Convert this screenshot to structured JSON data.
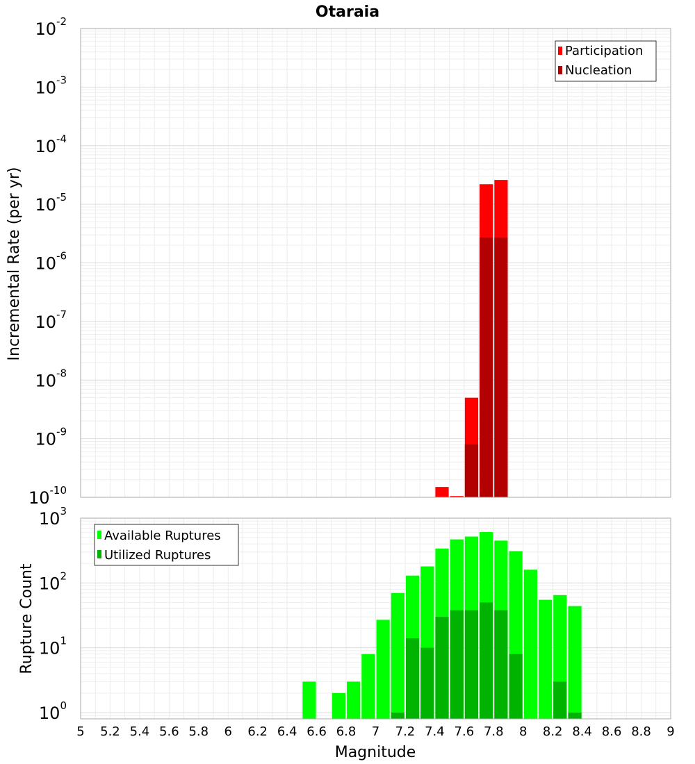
{
  "chart_data": [
    {
      "type": "bar",
      "title": "Otaraia",
      "xlabel": "",
      "ylabel": "Incremental Rate (per yr)",
      "xlim": [
        5,
        9
      ],
      "ylim": [
        1e-10,
        0.01
      ],
      "yscale": "log",
      "grid": true,
      "legend_position": "top-right",
      "bin_width": 0.1,
      "y_ticks": [
        {
          "base": "10",
          "exp": "-2",
          "value": 0.01
        },
        {
          "base": "10",
          "exp": "-3",
          "value": 0.001
        },
        {
          "base": "10",
          "exp": "-4",
          "value": 0.0001
        },
        {
          "base": "10",
          "exp": "-5",
          "value": 1e-05
        },
        {
          "base": "10",
          "exp": "-6",
          "value": 1e-06
        },
        {
          "base": "10",
          "exp": "-7",
          "value": 1e-07
        },
        {
          "base": "10",
          "exp": "-8",
          "value": 1e-08
        },
        {
          "base": "10",
          "exp": "-9",
          "value": 1e-09
        },
        {
          "base": "10",
          "exp": "-10",
          "value": 1e-10
        }
      ],
      "series": [
        {
          "name": "Participation",
          "color": "#ff0000",
          "points": [
            {
              "x": 7.45,
              "y": 1.5e-10
            },
            {
              "x": 7.55,
              "y": 1.05e-10
            },
            {
              "x": 7.65,
              "y": 5e-09
            },
            {
              "x": 7.75,
              "y": 2.2e-05
            },
            {
              "x": 7.85,
              "y": 2.6e-05
            }
          ]
        },
        {
          "name": "Nucleation",
          "color": "#b30000",
          "points": [
            {
              "x": 7.65,
              "y": 8e-10
            },
            {
              "x": 7.75,
              "y": 2.7e-06
            },
            {
              "x": 7.85,
              "y": 2.7e-06
            }
          ]
        }
      ]
    },
    {
      "type": "bar",
      "title": "",
      "xlabel": "Magnitude",
      "ylabel": "Rupture Count",
      "xlim": [
        5,
        9
      ],
      "ylim": [
        0.8,
        1000
      ],
      "yscale": "log",
      "grid": true,
      "legend_position": "top-left",
      "bin_width": 0.1,
      "x_ticks": [
        "5",
        "5.2",
        "5.4",
        "5.6",
        "5.8",
        "6",
        "6.2",
        "6.4",
        "6.6",
        "6.8",
        "7",
        "7.2",
        "7.4",
        "7.6",
        "7.8",
        "8",
        "8.2",
        "8.4",
        "8.6",
        "8.8",
        "9"
      ],
      "y_ticks": [
        {
          "base": "10",
          "exp": "3",
          "value": 1000
        },
        {
          "base": "10",
          "exp": "2",
          "value": 100
        },
        {
          "base": "10",
          "exp": "1",
          "value": 10
        },
        {
          "base": "10",
          "exp": "0",
          "value": 1
        }
      ],
      "series": [
        {
          "name": "Available Ruptures",
          "color": "#00ff00",
          "points": [
            {
              "x": 6.55,
              "y": 3
            },
            {
              "x": 6.75,
              "y": 2
            },
            {
              "x": 6.85,
              "y": 3
            },
            {
              "x": 6.95,
              "y": 8
            },
            {
              "x": 7.05,
              "y": 27
            },
            {
              "x": 7.15,
              "y": 70
            },
            {
              "x": 7.25,
              "y": 130
            },
            {
              "x": 7.35,
              "y": 180
            },
            {
              "x": 7.45,
              "y": 340
            },
            {
              "x": 7.55,
              "y": 470
            },
            {
              "x": 7.65,
              "y": 520
            },
            {
              "x": 7.75,
              "y": 610
            },
            {
              "x": 7.85,
              "y": 450
            },
            {
              "x": 7.95,
              "y": 310
            },
            {
              "x": 8.05,
              "y": 160
            },
            {
              "x": 8.15,
              "y": 55
            },
            {
              "x": 8.25,
              "y": 65
            },
            {
              "x": 8.35,
              "y": 44
            }
          ]
        },
        {
          "name": "Utilized Ruptures",
          "color": "#00b300",
          "points": [
            {
              "x": 7.15,
              "y": 1
            },
            {
              "x": 7.25,
              "y": 14
            },
            {
              "x": 7.35,
              "y": 10
            },
            {
              "x": 7.45,
              "y": 30
            },
            {
              "x": 7.55,
              "y": 38
            },
            {
              "x": 7.65,
              "y": 38
            },
            {
              "x": 7.75,
              "y": 50
            },
            {
              "x": 7.85,
              "y": 38
            },
            {
              "x": 7.95,
              "y": 8
            },
            {
              "x": 8.25,
              "y": 3
            },
            {
              "x": 8.35,
              "y": 1
            }
          ]
        }
      ]
    }
  ]
}
